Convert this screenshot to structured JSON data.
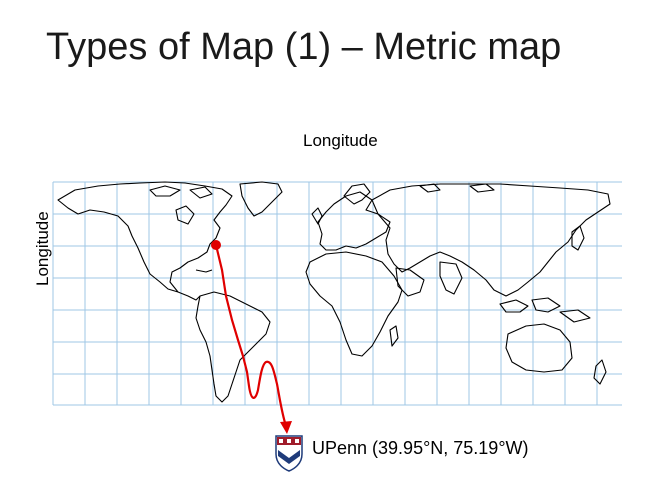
{
  "slide": {
    "title": "Types of Map (1) – Metric map",
    "x_axis_label": "Longitude",
    "y_axis_label": "Longitude",
    "caption": "UPenn (39.95°N, 75.19°W)"
  },
  "map": {
    "grid_color": "#9fc7e6",
    "coast_color": "#000000",
    "route_color": "#e00000",
    "logo": "penn-shield-icon"
  }
}
